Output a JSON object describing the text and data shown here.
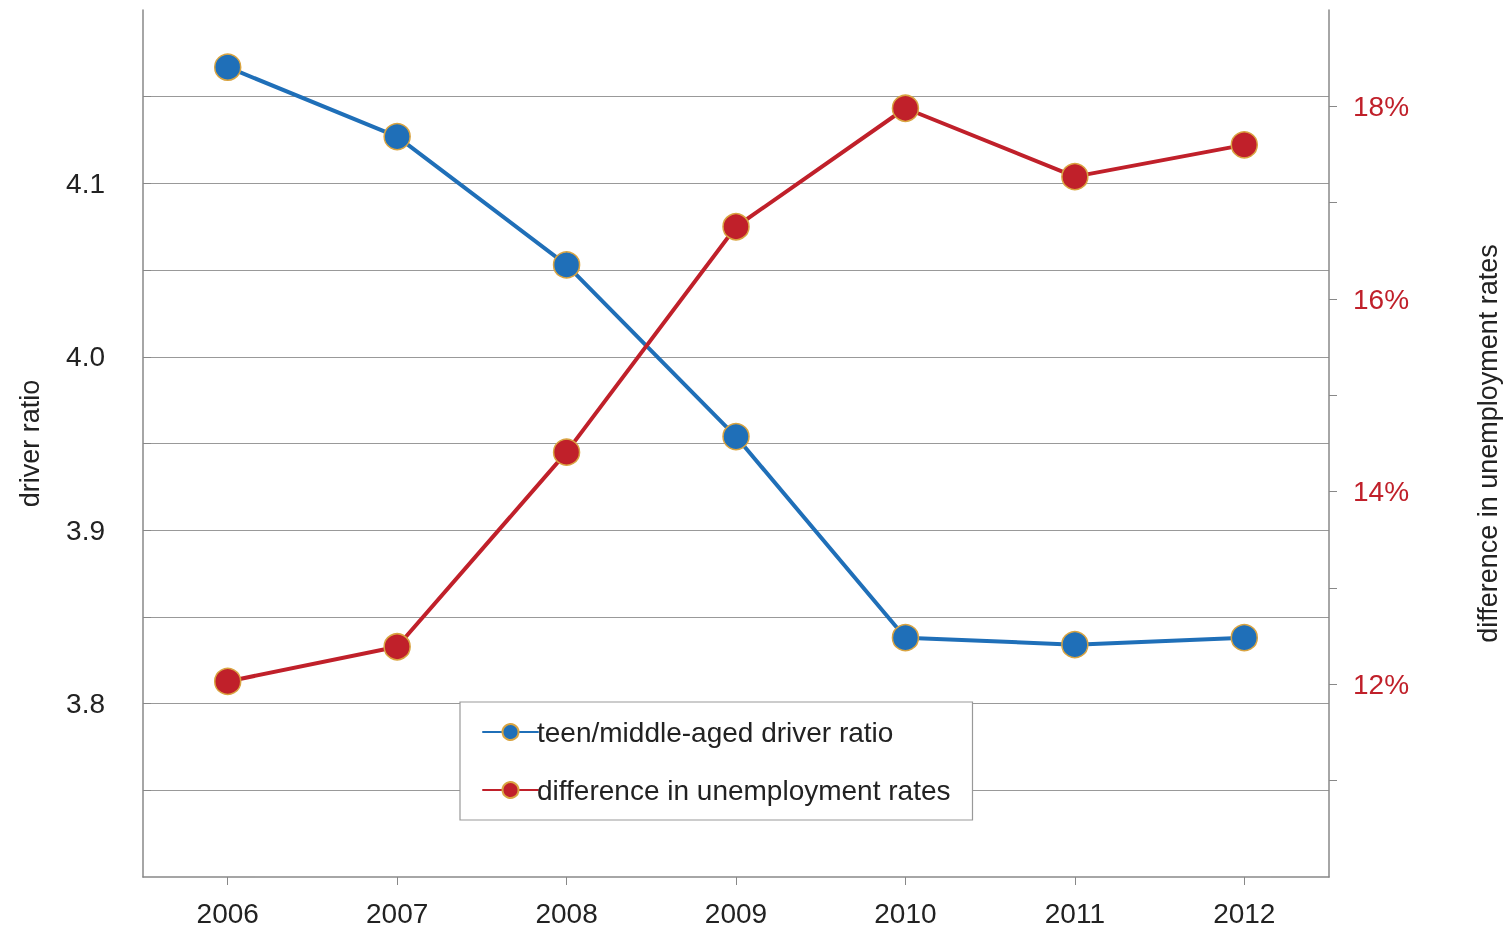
{
  "chart_data": {
    "type": "line",
    "ylabel": "driver ratio",
    "y2label": "difference in unemployment rates",
    "categories": [
      "2006",
      "2007",
      "2008",
      "2009",
      "2010",
      "2011",
      "2012"
    ],
    "series": [
      {
        "name": "teen/middle-aged driver ratio",
        "color": "#1f6fb8",
        "values": [
          4.167,
          4.127,
          4.053,
          3.954,
          3.838,
          3.834,
          3.838
        ]
      },
      {
        "name": "difference in unemployment rates",
        "color": "#c0202a",
        "axis": "y2",
        "values": [
          12.03,
          12.39,
          14.41,
          16.75,
          17.98,
          17.27,
          17.6
        ]
      }
    ],
    "ylim": [
      3.7,
      4.2
    ],
    "yticks": [
      {
        "value": 3.75,
        "label": null
      },
      3.8,
      {
        "value": 3.85,
        "label": null
      },
      3.9,
      {
        "value": 3.95,
        "label": null
      },
      {
        "value": 4.0,
        "label": "4.0"
      },
      {
        "value": 4.05,
        "label": null
      },
      4.1,
      {
        "value": 4.15,
        "label": null
      }
    ],
    "y2lim": [
      10,
      19
    ],
    "y2ticks": [
      {
        "value": 11,
        "label": null
      },
      {
        "value": 12,
        "label": "12%"
      },
      {
        "value": 13,
        "label": null
      },
      {
        "value": 14,
        "label": "14%"
      },
      {
        "value": 15,
        "label": null
      },
      {
        "value": 16,
        "label": "16%"
      },
      {
        "value": 17,
        "label": null
      },
      {
        "value": 18,
        "label": "18%"
      }
    ],
    "grid": "y",
    "legend": "bottom",
    "marker": "circle",
    "line_style": "solid"
  }
}
